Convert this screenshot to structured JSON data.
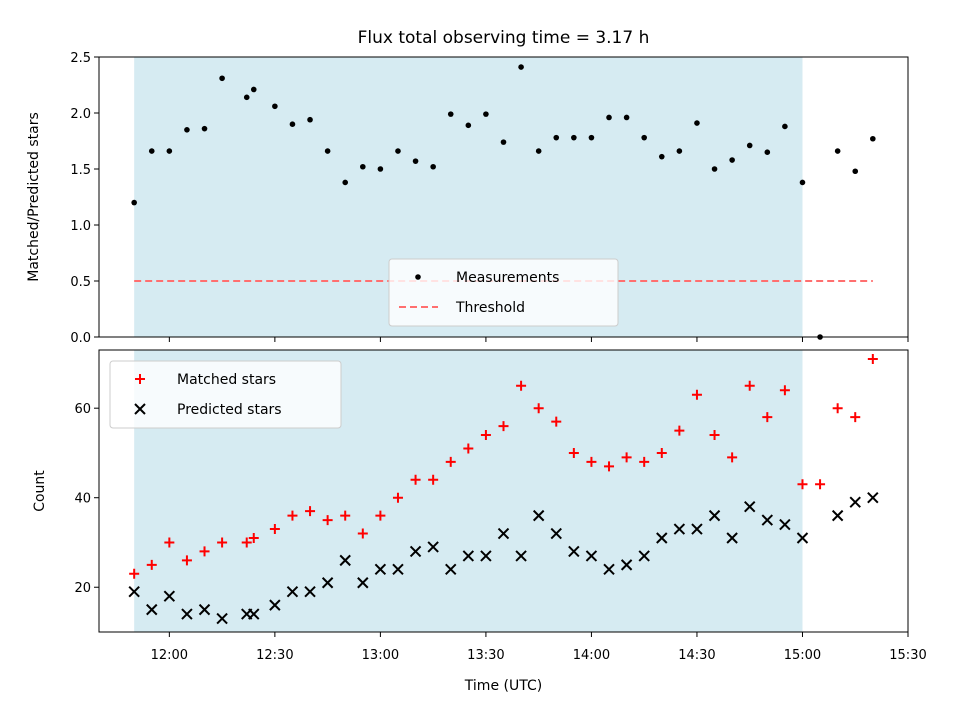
{
  "chart_data": [
    {
      "type": "scatter",
      "title": "Flux total observing time = 3.17 h",
      "ylabel": "Matched/Predicted stars",
      "xlabel": "",
      "ylim": [
        0,
        2.5
      ],
      "yticks": [
        "0.0",
        "0.5",
        "1.0",
        "1.5",
        "2.0",
        "2.5"
      ],
      "xlim": [
        "11:40",
        "15:30"
      ],
      "shaded_span": [
        "11:50",
        "15:00"
      ],
      "legend_position": "lower center",
      "series": [
        {
          "name": "Measurements",
          "marker": "dot",
          "color": "#000000",
          "x": [
            "11:50",
            "11:55",
            "12:00",
            "12:05",
            "12:10",
            "12:15",
            "12:22",
            "12:24",
            "12:30",
            "12:35",
            "12:40",
            "12:45",
            "12:50",
            "12:55",
            "13:00",
            "13:05",
            "13:10",
            "13:15",
            "13:20",
            "13:25",
            "13:30",
            "13:35",
            "13:40",
            "13:45",
            "13:50",
            "13:55",
            "14:00",
            "14:05",
            "14:10",
            "14:15",
            "14:20",
            "14:25",
            "14:30",
            "14:35",
            "14:40",
            "14:45",
            "14:50",
            "14:55",
            "15:00",
            "15:05",
            "15:10",
            "15:15",
            "15:20"
          ],
          "y": [
            1.2,
            1.66,
            1.66,
            1.85,
            1.86,
            2.31,
            2.14,
            2.21,
            2.06,
            1.9,
            1.94,
            1.66,
            1.38,
            1.52,
            1.5,
            1.66,
            1.57,
            1.52,
            1.99,
            1.89,
            1.99,
            1.74,
            2.41,
            1.66,
            1.78,
            1.78,
            1.78,
            1.96,
            1.96,
            1.78,
            1.61,
            1.66,
            1.91,
            1.5,
            1.58,
            1.71,
            1.65,
            1.88,
            1.38,
            0.0,
            1.66,
            1.48,
            1.77
          ]
        },
        {
          "name": "Threshold",
          "marker": "dashed-line",
          "color": "#ff6f6f",
          "x": [
            "11:50",
            "15:20"
          ],
          "y": [
            0.5,
            0.5
          ]
        }
      ]
    },
    {
      "type": "scatter",
      "title": "",
      "ylabel": "Count",
      "xlabel": "Time (UTC)",
      "ylim": [
        10,
        73
      ],
      "yticks": [
        "20",
        "40",
        "60"
      ],
      "xlim": [
        "11:40",
        "15:30"
      ],
      "xticks": [
        "12:00",
        "12:30",
        "13:00",
        "13:30",
        "14:00",
        "14:30",
        "15:00",
        "15:30"
      ],
      "shaded_span": [
        "11:50",
        "15:00"
      ],
      "legend_position": "upper left",
      "series": [
        {
          "name": "Matched stars",
          "marker": "plus",
          "color": "#ff0000",
          "x": [
            "11:50",
            "11:55",
            "12:00",
            "12:05",
            "12:10",
            "12:15",
            "12:22",
            "12:24",
            "12:30",
            "12:35",
            "12:40",
            "12:45",
            "12:50",
            "12:55",
            "13:00",
            "13:05",
            "13:10",
            "13:15",
            "13:20",
            "13:25",
            "13:30",
            "13:35",
            "13:40",
            "13:45",
            "13:50",
            "13:55",
            "14:00",
            "14:05",
            "14:10",
            "14:15",
            "14:20",
            "14:25",
            "14:30",
            "14:35",
            "14:40",
            "14:45",
            "14:50",
            "14:55",
            "15:00",
            "15:05",
            "15:10",
            "15:15",
            "15:20"
          ],
          "y": [
            23,
            25,
            30,
            26,
            28,
            30,
            30,
            31,
            33,
            36,
            37,
            35,
            36,
            32,
            36,
            40,
            44,
            44,
            48,
            51,
            54,
            56,
            65,
            60,
            57,
            50,
            48,
            47,
            49,
            48,
            50,
            55,
            63,
            54,
            49,
            65,
            58,
            64,
            43,
            43,
            60,
            58,
            71
          ]
        },
        {
          "name": "Predicted stars",
          "marker": "x",
          "color": "#000000",
          "x": [
            "11:50",
            "11:55",
            "12:00",
            "12:05",
            "12:10",
            "12:15",
            "12:22",
            "12:24",
            "12:30",
            "12:35",
            "12:40",
            "12:45",
            "12:50",
            "12:55",
            "13:00",
            "13:05",
            "13:10",
            "13:15",
            "13:20",
            "13:25",
            "13:30",
            "13:35",
            "13:40",
            "13:45",
            "13:50",
            "13:55",
            "14:00",
            "14:05",
            "14:10",
            "14:15",
            "14:20",
            "14:25",
            "14:30",
            "14:35",
            "14:40",
            "14:45",
            "14:50",
            "14:55",
            "15:00",
            "15:10",
            "15:15",
            "15:20"
          ],
          "y": [
            19,
            15,
            18,
            14,
            15,
            13,
            14,
            14,
            16,
            19,
            19,
            21,
            26,
            21,
            24,
            24,
            28,
            29,
            24,
            27,
            27,
            32,
            27,
            36,
            32,
            28,
            27,
            24,
            25,
            27,
            31,
            33,
            33,
            36,
            31,
            38,
            35,
            34,
            31,
            36,
            39,
            40
          ]
        }
      ]
    }
  ],
  "colors": {
    "span": "#add8e6",
    "matched": "#ff0000",
    "predicted": "#000000",
    "threshold": "#ff6f6f"
  }
}
